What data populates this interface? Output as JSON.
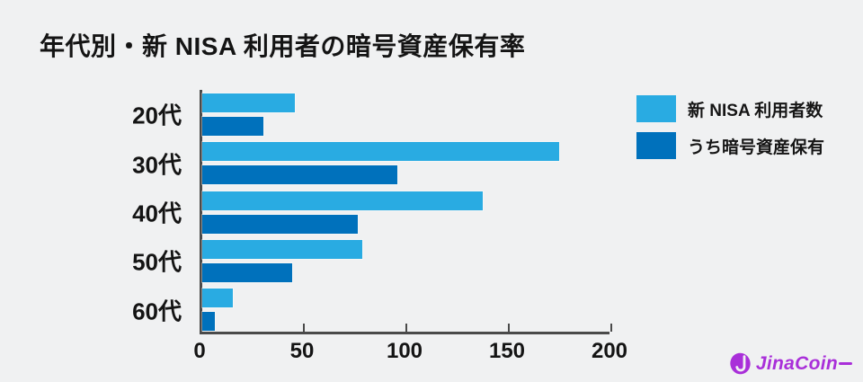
{
  "title": "年代別・新 NISA 利用者の暗号資産保有率",
  "chart_data": {
    "type": "bar",
    "orientation": "horizontal",
    "title": "年代別・新 NISA 利用者の暗号資産保有率",
    "categories": [
      "20代",
      "30代",
      "40代",
      "50代",
      "60代"
    ],
    "series": [
      {
        "name": "新 NISA 利用者数",
        "color": "#29ABE2",
        "values": [
          45,
          174,
          137,
          78,
          15
        ]
      },
      {
        "name": "うち暗号資産保有",
        "color": "#0071BC",
        "values": [
          30,
          95,
          76,
          44,
          6
        ]
      }
    ],
    "xlim": [
      0,
      200
    ],
    "x_ticks": [
      0,
      50,
      100,
      150,
      200
    ],
    "grid": false,
    "legend_position": "top-right"
  },
  "legend": {
    "items": [
      {
        "label": "新 NISA 利用者数",
        "color": "#29ABE2"
      },
      {
        "label": "うち暗号資産保有",
        "color": "#0071BC"
      }
    ]
  },
  "logo": {
    "text": "JinaCoin",
    "color": "#A92FD9"
  },
  "colors": {
    "background": "#F0F1F2",
    "axis": "#4A4A4A",
    "text": "#141414"
  }
}
